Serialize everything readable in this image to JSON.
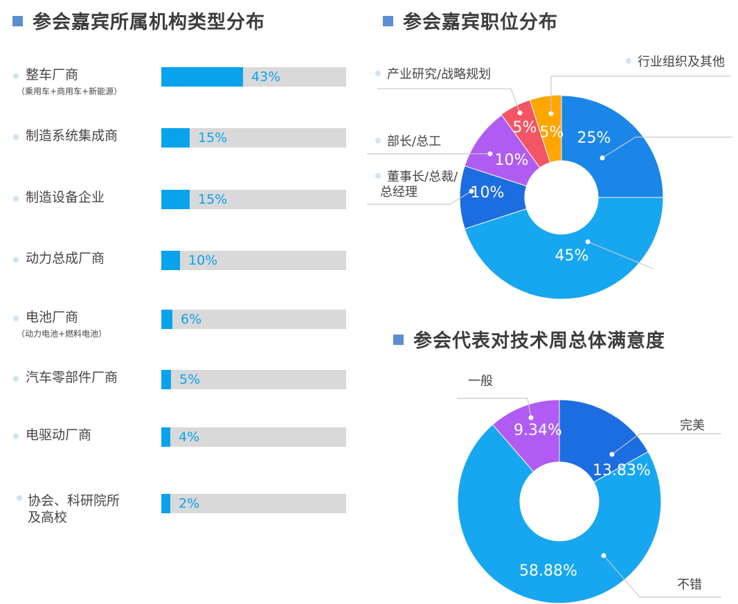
{
  "chart_data": [
    {
      "type": "bar",
      "title": "参会嘉宾所属机构类型分布",
      "categories": [
        "整车厂商",
        "制造系统集成商",
        "制造设备企业",
        "动力总成厂商",
        "电池厂商",
        "汽车零部件厂商",
        "电驱动厂商",
        "协会、科研院所及高校"
      ],
      "notes": [
        "（乘用车+商用车+新能源）",
        "",
        "",
        "",
        "（动力电池+燃料电池）",
        "",
        "",
        ""
      ],
      "values": [
        43,
        15,
        15,
        10,
        6,
        5,
        4,
        2
      ],
      "labels": [
        "43%",
        "15%",
        "15%",
        "10%",
        "6%",
        "5%",
        "4%",
        "2%"
      ],
      "xlim": [
        0,
        100
      ],
      "colors": {
        "fill": "#09a3ec",
        "track": "#d9d9d9"
      }
    },
    {
      "type": "pie",
      "title": "参会嘉宾职位分布",
      "slices": [
        {
          "name": "",
          "value": 25,
          "label": "25%",
          "color": "#1a86e8"
        },
        {
          "name": "",
          "value": 45,
          "label": "45%",
          "color": "#17a6f0"
        },
        {
          "name": "董事长/总裁/总经理",
          "value": 10,
          "label": "10%",
          "color": "#1c6de0"
        },
        {
          "name": "部长/总工",
          "value": 10,
          "label": "10%",
          "color": "#b05cf2"
        },
        {
          "name": "产业研究/战略规划",
          "value": 5,
          "label": "5%",
          "color": "#f25664"
        },
        {
          "name": "行业组织及其他",
          "value": 5,
          "label": "5%",
          "color": "#ffa500"
        }
      ]
    },
    {
      "type": "pie",
      "title": "参会代表对技术周总体满意度",
      "slices": [
        {
          "name": "完美",
          "value": 13.83,
          "label": "13.83%",
          "color": "#1c6de0"
        },
        {
          "name": "不错",
          "value": 58.88,
          "label": "58.88%",
          "color": "#17a6f0"
        },
        {
          "name": "一般",
          "value": 9.34,
          "label": "9.34%",
          "color": "#b05cf2"
        }
      ]
    }
  ]
}
